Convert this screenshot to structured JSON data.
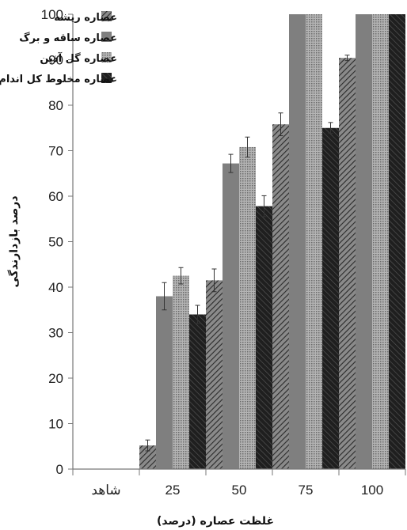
{
  "chart_data": {
    "type": "bar",
    "xlabel": "غلظت عصاره (درصد)",
    "ylabel": "درصد بازدارندگی",
    "ylim": [
      0,
      100
    ],
    "yticks": [
      0,
      10,
      20,
      30,
      40,
      50,
      60,
      70,
      80,
      90,
      100
    ],
    "categories": [
      "شاهد",
      "25",
      "50",
      "75",
      "100"
    ],
    "series": [
      {
        "name": "عصاره ریشه",
        "values": [
          0,
          5.2,
          41.5,
          75.8,
          90.4
        ],
        "errors": [
          0,
          1.2,
          2.5,
          2.5,
          0.6
        ],
        "color": "#6f6f6f",
        "pattern": "diag"
      },
      {
        "name": "عصاره ساقه و برگ",
        "values": [
          0,
          38.0,
          67.2,
          100,
          100
        ],
        "errors": [
          0,
          3.0,
          2.0,
          0,
          0
        ],
        "color": "#7f7f7f",
        "pattern": "solid"
      },
      {
        "name": "عصاره گل آذین",
        "values": [
          0,
          42.5,
          70.8,
          100,
          100
        ],
        "errors": [
          0,
          1.8,
          2.2,
          0,
          0
        ],
        "color": "#9a9a9a",
        "pattern": "dots"
      },
      {
        "name": "عصاره مخلوط کل اندام ها",
        "values": [
          0,
          34.0,
          57.8,
          75.0,
          100
        ],
        "errors": [
          0,
          2.0,
          2.3,
          1.2,
          0
        ],
        "color": "#2b2b2b",
        "pattern": "dark"
      }
    ],
    "legend_position": "top-left",
    "grid": false
  }
}
